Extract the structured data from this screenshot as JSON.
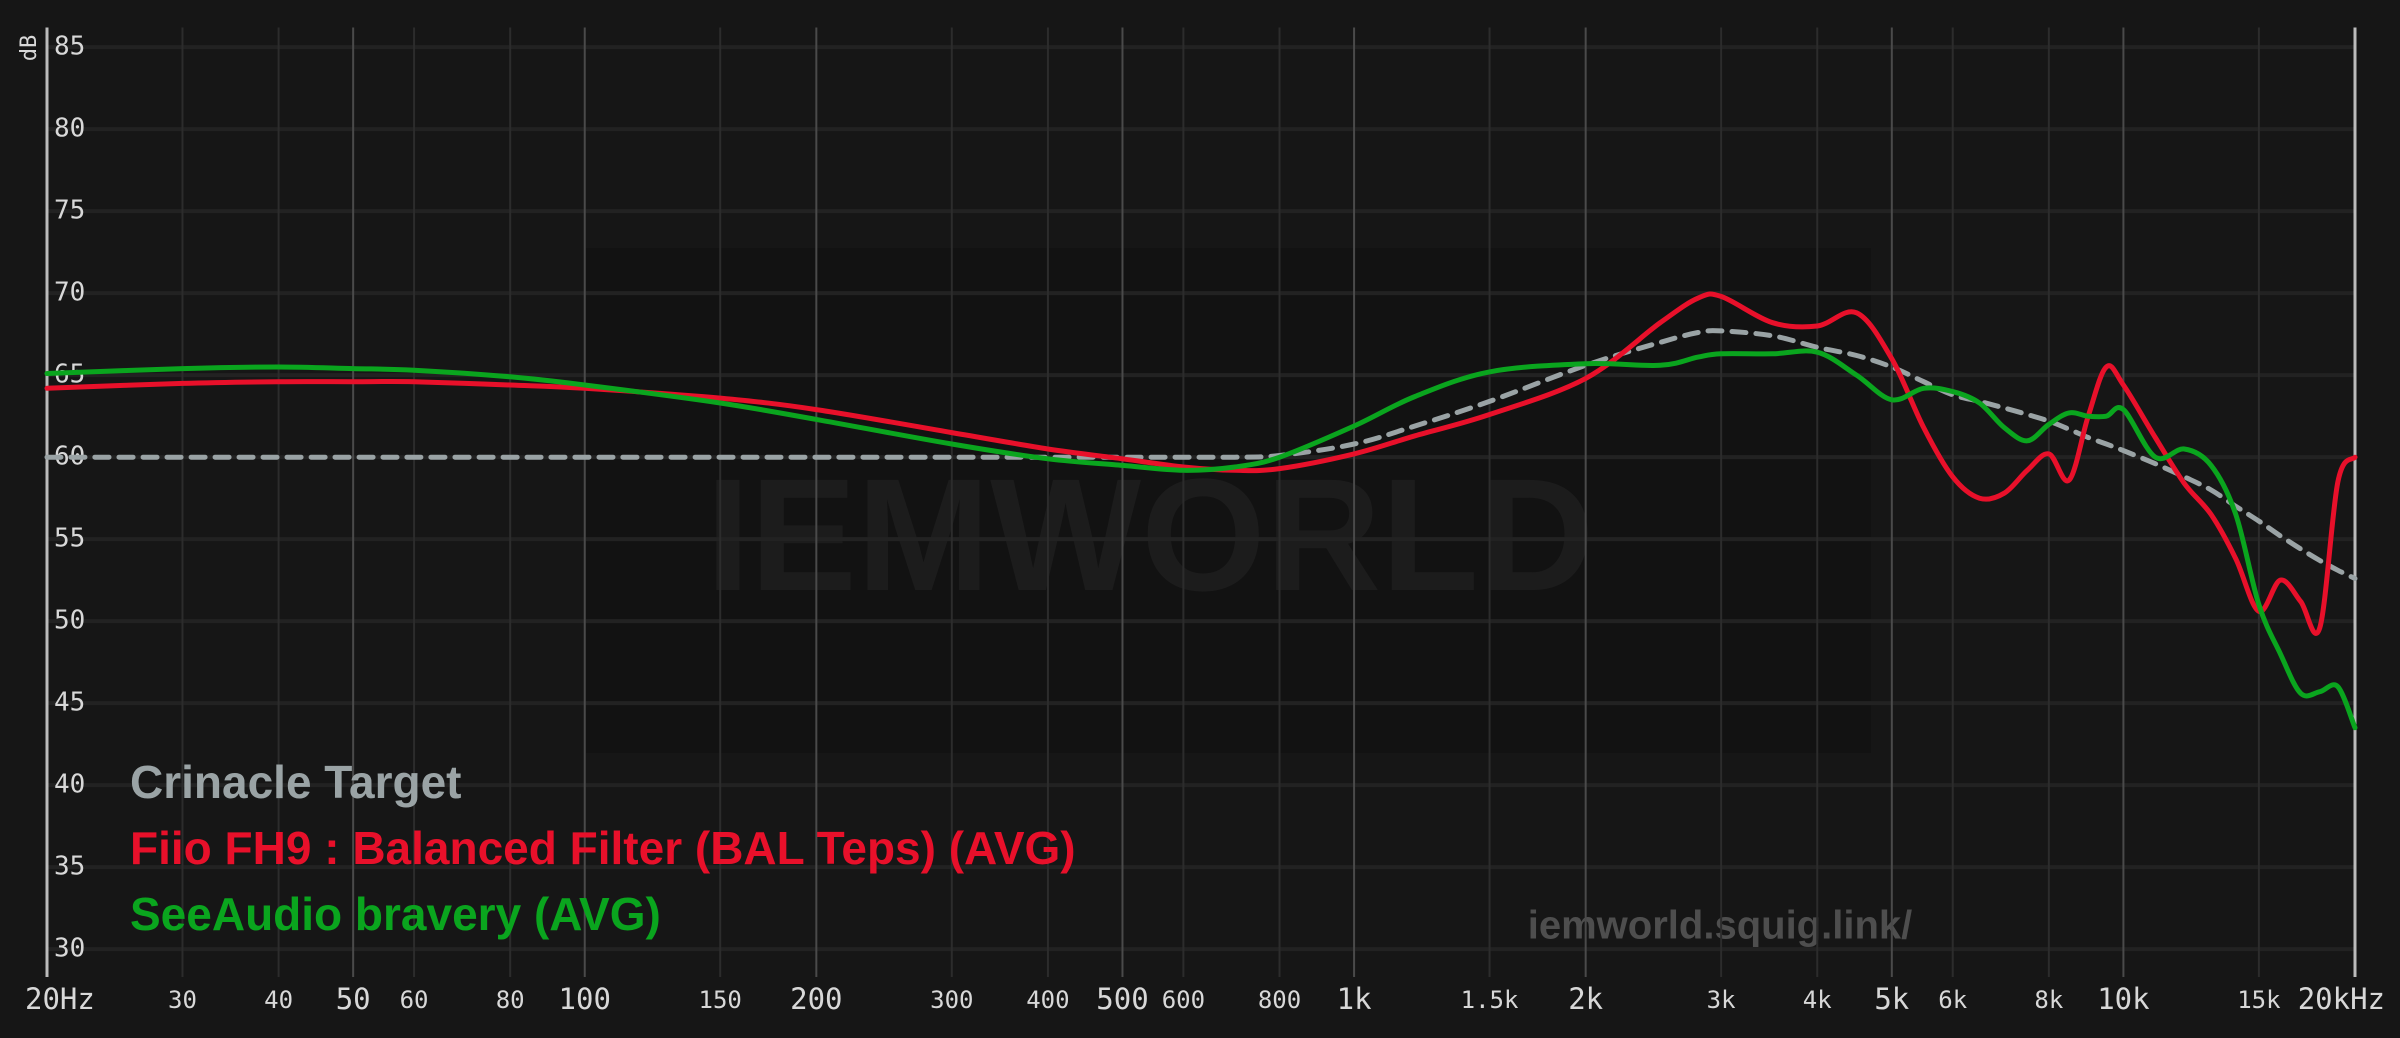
{
  "chart_data": {
    "type": "line",
    "y_label": "dB",
    "log_x": true,
    "grid": true,
    "watermark": "IEMWORLD",
    "site": "iemworld.squig.link/",
    "xlim": [
      20,
      20000
    ],
    "ylim": [
      28.3,
      86.2
    ],
    "xticks": [
      {
        "value": 20,
        "label": "20Hz"
      },
      30,
      40,
      50,
      60,
      80,
      100,
      150,
      200,
      300,
      400,
      500,
      600,
      800,
      {
        "value": 1000,
        "label": "1k"
      },
      {
        "value": 1500,
        "label": "1.5k"
      },
      {
        "value": 2000,
        "label": "2k"
      },
      {
        "value": 3000,
        "label": "3k"
      },
      {
        "value": 4000,
        "label": "4k"
      },
      {
        "value": 5000,
        "label": "5k"
      },
      {
        "value": 6000,
        "label": "6k"
      },
      {
        "value": 8000,
        "label": "8k"
      },
      {
        "value": 10000,
        "label": "10k"
      },
      {
        "value": 15000,
        "label": "15k"
      },
      {
        "value": 20000,
        "label": "20kHz"
      }
    ],
    "yticks": [
      30,
      35,
      40,
      45,
      50,
      55,
      60,
      65,
      70,
      75,
      80,
      85
    ],
    "x": [
      20,
      30,
      40,
      50,
      60,
      80,
      100,
      150,
      200,
      300,
      400,
      500,
      600,
      700,
      800,
      1000,
      1200,
      1500,
      2000,
      2500,
      2800,
      3000,
      3500,
      4000,
      4500,
      5000,
      5500,
      6000,
      6500,
      7000,
      7500,
      8000,
      8500,
      9000,
      9500,
      10000,
      11000,
      12000,
      13000,
      14000,
      15000,
      16000,
      17000,
      18000,
      19000,
      20000
    ],
    "series": [
      {
        "name": "Crinacle Target",
        "color": "#9aa3a5",
        "dashed": true,
        "values": [
          60,
          60,
          60,
          60,
          60,
          60,
          60,
          60,
          60,
          60,
          60,
          60,
          60,
          60,
          60.1,
          60.8,
          61.9,
          63.4,
          65.6,
          67,
          67.6,
          67.7,
          67.4,
          66.7,
          66.2,
          65.5,
          64.6,
          63.8,
          63.4,
          63,
          62.6,
          62.2,
          61.7,
          61.2,
          60.8,
          60.4,
          59.6,
          58.8,
          58,
          57,
          56.1,
          55.2,
          54.4,
          53.7,
          53.1,
          52.6
        ]
      },
      {
        "name": "Fiio FH9 : Balanced Filter (BAL Teps) (AVG)",
        "color": "#e8102a",
        "dashed": false,
        "values": [
          64.2,
          64.5,
          64.6,
          64.6,
          64.6,
          64.4,
          64.2,
          63.6,
          62.9,
          61.5,
          60.5,
          59.9,
          59.4,
          59.2,
          59.3,
          60.2,
          61.3,
          62.6,
          64.8,
          68.2,
          69.7,
          69.8,
          68.2,
          68.0,
          68.8,
          66.0,
          61.8,
          58.8,
          57.5,
          57.8,
          59.2,
          60.2,
          58.6,
          62.5,
          65.5,
          64.4,
          61.2,
          58.4,
          56.5,
          53.8,
          50.6,
          52.5,
          51.2,
          49.6,
          58.5,
          60.0
        ]
      },
      {
        "name": "SeeAudio bravery (AVG)",
        "color": "#0aa51e",
        "dashed": false,
        "values": [
          65.1,
          65.4,
          65.5,
          65.4,
          65.3,
          64.9,
          64.4,
          63.3,
          62.3,
          60.8,
          59.9,
          59.5,
          59.2,
          59.4,
          60.0,
          61.9,
          63.7,
          65.2,
          65.7,
          65.6,
          66.1,
          66.3,
          66.3,
          66.4,
          65.0,
          63.5,
          64.2,
          64.0,
          63.3,
          61.8,
          61.0,
          62.0,
          62.7,
          62.5,
          62.5,
          62.9,
          60.0,
          60.5,
          59.5,
          56.5,
          51.0,
          48.0,
          45.6,
          45.7,
          46.0,
          43.5
        ]
      }
    ]
  }
}
